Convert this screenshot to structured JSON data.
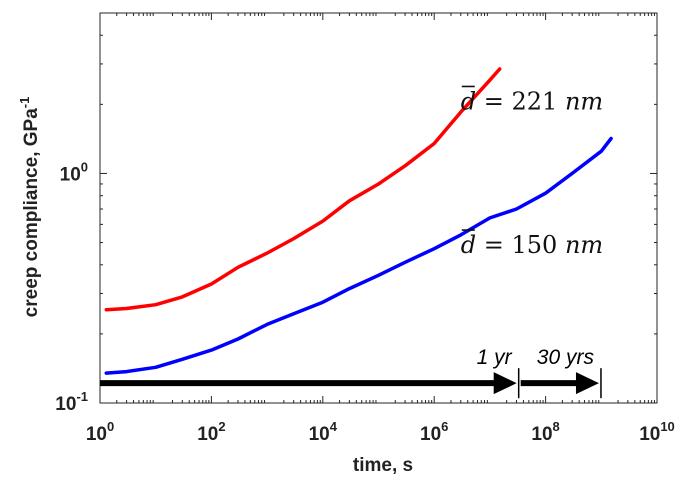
{
  "chart_data": {
    "type": "line",
    "xscale": "log",
    "yscale": "log",
    "xlim": [
      1,
      10000000000
    ],
    "ylim": [
      0.1,
      5
    ],
    "xlabel": "time, s",
    "ylabel": "creep compliance, GPa",
    "ylabel_sup": "-1",
    "xticks": [
      {
        "value": 1,
        "base": "10",
        "exp": "0"
      },
      {
        "value": 100,
        "base": "10",
        "exp": "2"
      },
      {
        "value": 10000,
        "base": "10",
        "exp": "4"
      },
      {
        "value": 1000000,
        "base": "10",
        "exp": "6"
      },
      {
        "value": 100000000,
        "base": "10",
        "exp": "8"
      },
      {
        "value": 10000000000,
        "base": "10",
        "exp": "10"
      }
    ],
    "yticks": [
      {
        "value": 0.1,
        "base": "10",
        "exp": "-1"
      },
      {
        "value": 1,
        "base": "10",
        "exp": "0"
      }
    ],
    "series": [
      {
        "color": "#ff0000",
        "x": [
          1.3,
          3,
          10,
          30,
          100,
          300,
          1000,
          3000,
          10000,
          30000,
          100000,
          300000,
          1000000,
          3000000,
          10000000,
          15000000
        ],
        "y": [
          0.255,
          0.258,
          0.268,
          0.29,
          0.33,
          0.39,
          0.45,
          0.52,
          0.62,
          0.76,
          0.9,
          1.08,
          1.35,
          1.85,
          2.55,
          2.85
        ]
      },
      {
        "color": "#0000ff",
        "x": [
          1.3,
          3,
          10,
          30,
          100,
          300,
          1000,
          3000,
          10000,
          30000,
          100000,
          300000,
          1000000,
          3000000,
          10000000,
          30000000,
          100000000,
          300000000,
          1000000000,
          1500000000
        ],
        "y": [
          0.135,
          0.137,
          0.143,
          0.155,
          0.17,
          0.19,
          0.22,
          0.245,
          0.275,
          0.315,
          0.36,
          0.41,
          0.47,
          0.54,
          0.64,
          0.7,
          0.82,
          1.0,
          1.25,
          1.42
        ]
      }
    ],
    "annotations": [
      {
        "label": "d",
        "expr": " = 221 ",
        "unit": "nm",
        "x": 3000000,
        "y": 1.9
      },
      {
        "label": "d",
        "expr": " = 150 ",
        "unit": "nm",
        "x": 3000000,
        "y": 0.45
      }
    ],
    "arrows": [
      {
        "label": "1 yr",
        "from": 1,
        "to": 31536000
      },
      {
        "label": "30 yrs",
        "from": 31536000,
        "to": 946080000
      }
    ],
    "arrow_y": 0.122
  }
}
